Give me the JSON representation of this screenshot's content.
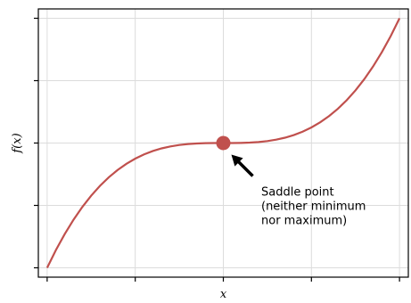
{
  "chart_data": {
    "type": "line",
    "title": "",
    "xlabel": "x",
    "ylabel": "f(x)",
    "xlim": [
      -2.1,
      2.1
    ],
    "ylim": [
      -8.6,
      8.6
    ],
    "x_ticks": [
      -2,
      -1,
      0,
      1,
      2
    ],
    "y_ticks": [
      -8,
      -4,
      0,
      4,
      8
    ],
    "tick_labels_shown": false,
    "grid": true,
    "series": [
      {
        "color": "#c0504d",
        "x": [
          -2.0,
          -1.9,
          -1.8,
          -1.7,
          -1.6,
          -1.5,
          -1.4,
          -1.3,
          -1.2,
          -1.1,
          -1.0,
          -0.9,
          -0.8,
          -0.7,
          -0.6,
          -0.5,
          -0.4,
          -0.3,
          -0.2,
          -0.1,
          0.0,
          0.1,
          0.2,
          0.3,
          0.4,
          0.5,
          0.6,
          0.7,
          0.8,
          0.9,
          1.0,
          1.1,
          1.2,
          1.3,
          1.4,
          1.5,
          1.6,
          1.7,
          1.8,
          1.9,
          2.0
        ],
        "y": [
          -8.0,
          -6.859,
          -5.832,
          -4.913,
          -4.096,
          -3.375,
          -2.744,
          -2.197,
          -1.728,
          -1.331,
          -1.0,
          -0.729,
          -0.512,
          -0.343,
          -0.216,
          -0.125,
          -0.064,
          -0.027,
          -0.008,
          -0.001,
          0.0,
          0.001,
          0.008,
          0.027,
          0.064,
          0.125,
          0.216,
          0.343,
          0.512,
          0.729,
          1.0,
          1.331,
          1.728,
          2.197,
          2.744,
          3.375,
          4.096,
          4.913,
          5.832,
          6.859,
          8.0
        ]
      }
    ],
    "highlight_point": {
      "x": 0,
      "y": 0,
      "color": "#c0504d"
    },
    "annotation": {
      "lines": [
        "Saddle point",
        "(neither minimum",
        "nor maximum)"
      ],
      "arrow_target": {
        "x": 0,
        "y": 0
      }
    }
  }
}
